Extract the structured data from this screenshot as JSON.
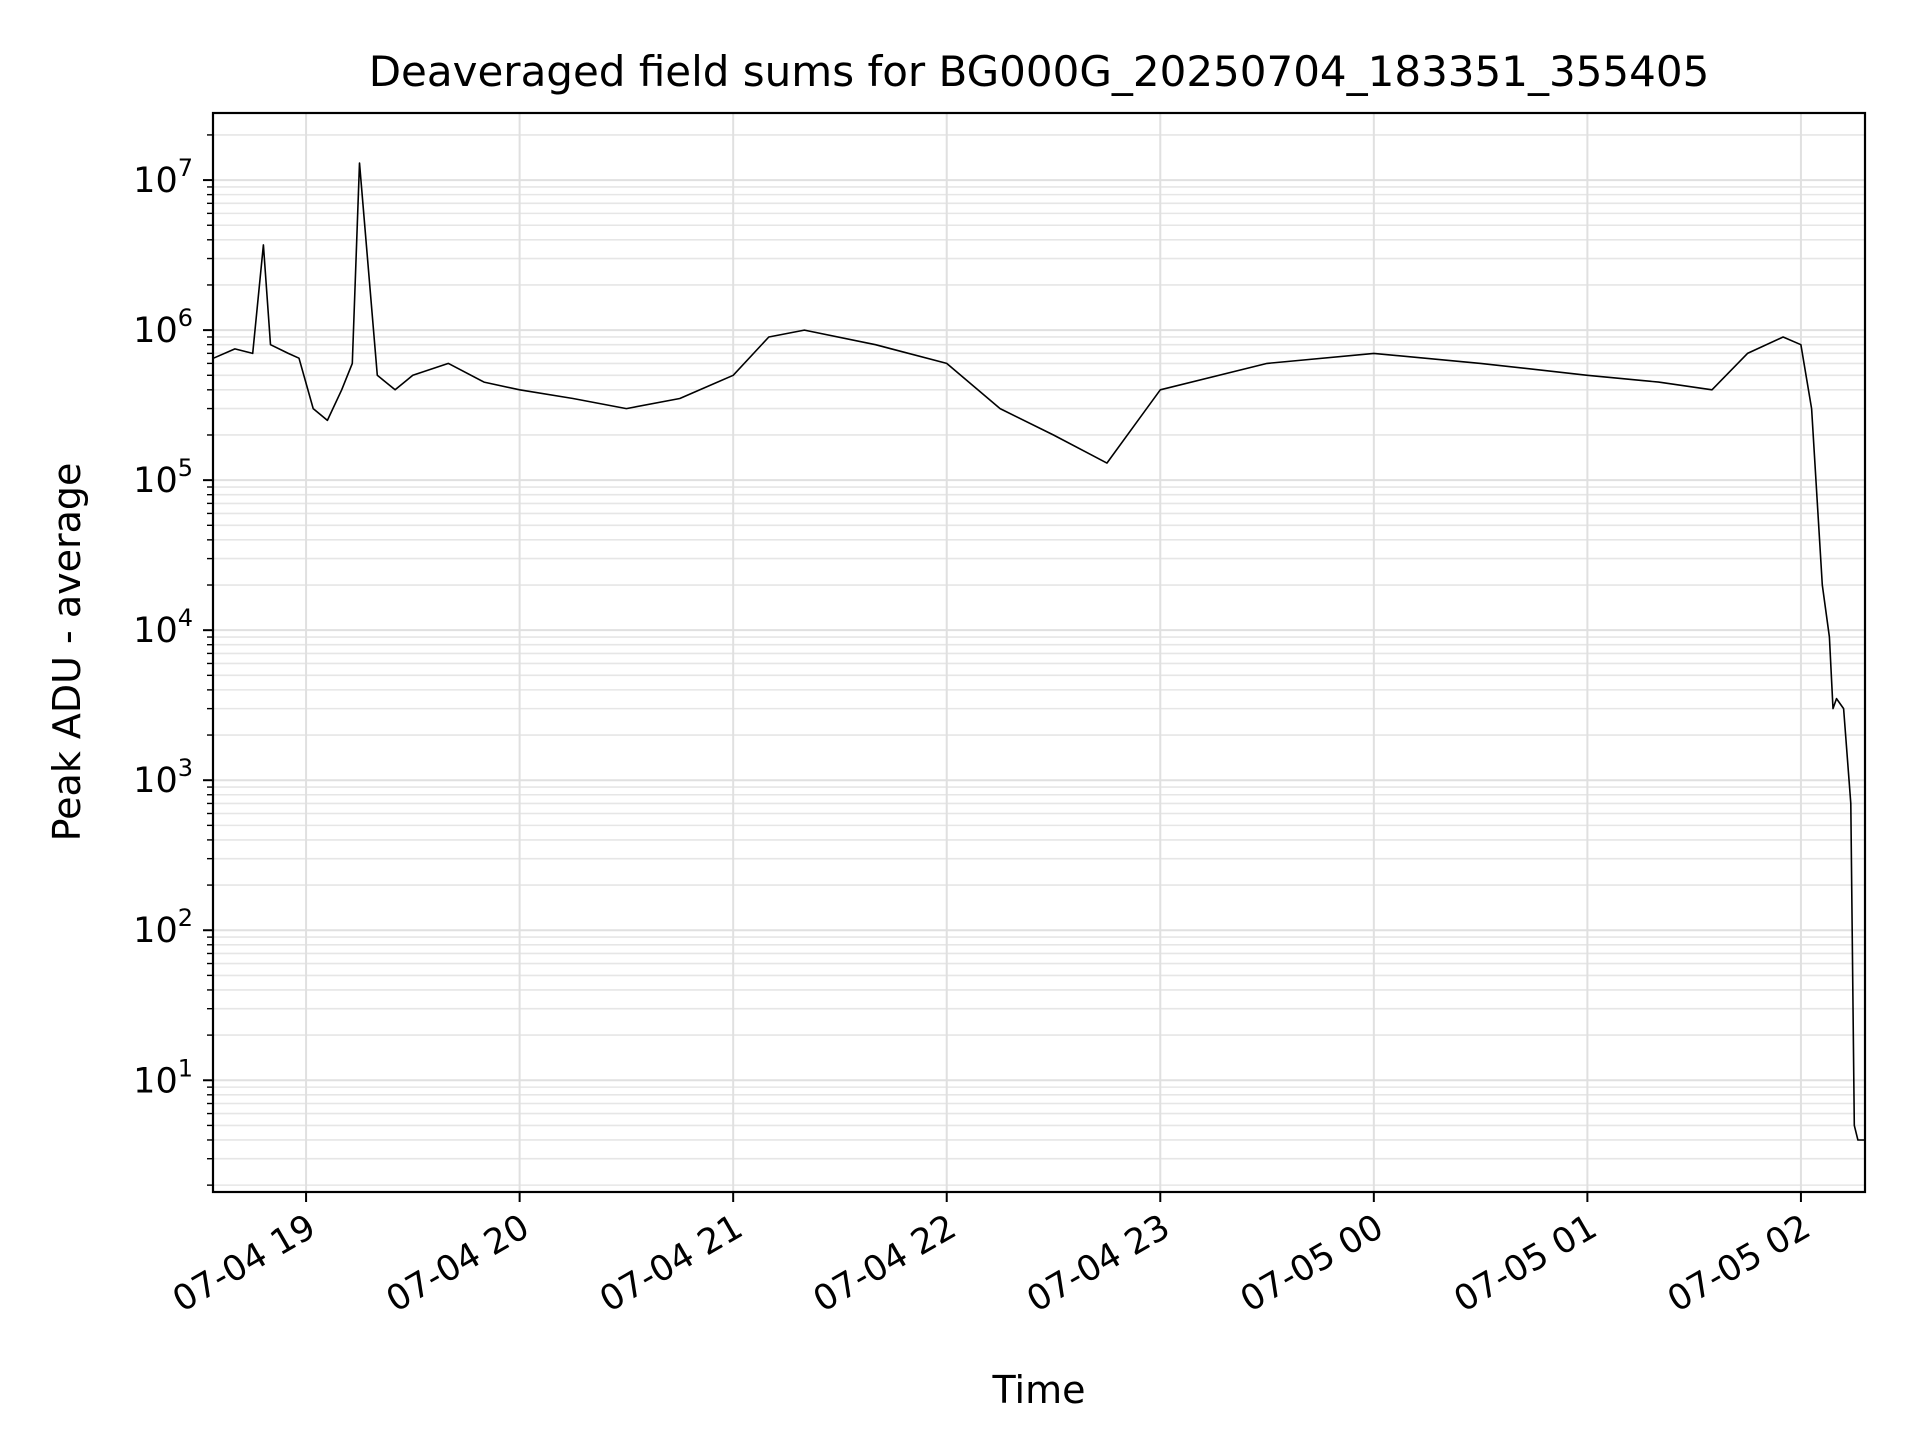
{
  "chart_data": {
    "type": "line",
    "title": "Deaveraged field sums for BG000G_20250704_183351_355405",
    "xlabel": "Time",
    "ylabel": "Peak ADU - average",
    "yscale": "log",
    "ylim": [
      1.8,
      28000000
    ],
    "xlim": [
      "2025-07-04 18:33:51",
      "2025-07-05 02:18:00"
    ],
    "grid": true,
    "y_ticks": [
      {
        "base": "10",
        "exp": "1",
        "value": 10
      },
      {
        "base": "10",
        "exp": "2",
        "value": 100
      },
      {
        "base": "10",
        "exp": "3",
        "value": 1000
      },
      {
        "base": "10",
        "exp": "4",
        "value": 10000
      },
      {
        "base": "10",
        "exp": "5",
        "value": 100000
      },
      {
        "base": "10",
        "exp": "6",
        "value": 1000000
      },
      {
        "base": "10",
        "exp": "7",
        "value": 10000000
      }
    ],
    "x_ticks": [
      {
        "label": "07-04 19",
        "time": "2025-07-04 19:00"
      },
      {
        "label": "07-04 20",
        "time": "2025-07-04 20:00"
      },
      {
        "label": "07-04 21",
        "time": "2025-07-04 21:00"
      },
      {
        "label": "07-04 22",
        "time": "2025-07-04 22:00"
      },
      {
        "label": "07-04 23",
        "time": "2025-07-04 23:00"
      },
      {
        "label": "07-05 00",
        "time": "2025-07-05 00:00"
      },
      {
        "label": "07-05 01",
        "time": "2025-07-05 01:00"
      },
      {
        "label": "07-05 02",
        "time": "2025-07-05 02:00"
      }
    ],
    "series": [
      {
        "color": "#000000",
        "x": [
          "2025-07-04 18:34",
          "2025-07-04 18:40",
          "2025-07-04 18:45",
          "2025-07-04 18:48",
          "2025-07-04 18:50",
          "2025-07-04 18:55",
          "2025-07-04 18:58",
          "2025-07-04 19:02",
          "2025-07-04 19:06",
          "2025-07-04 19:10",
          "2025-07-04 19:13",
          "2025-07-04 19:15",
          "2025-07-04 19:20",
          "2025-07-04 19:25",
          "2025-07-04 19:30",
          "2025-07-04 19:40",
          "2025-07-04 19:50",
          "2025-07-04 20:00",
          "2025-07-04 20:15",
          "2025-07-04 20:30",
          "2025-07-04 20:45",
          "2025-07-04 21:00",
          "2025-07-04 21:10",
          "2025-07-04 21:20",
          "2025-07-04 21:40",
          "2025-07-04 22:00",
          "2025-07-04 22:15",
          "2025-07-04 22:30",
          "2025-07-04 22:40",
          "2025-07-04 22:45",
          "2025-07-04 23:00",
          "2025-07-04 23:30",
          "2025-07-05 00:00",
          "2025-07-05 00:30",
          "2025-07-05 01:00",
          "2025-07-05 01:20",
          "2025-07-05 01:35",
          "2025-07-05 01:45",
          "2025-07-05 01:55",
          "2025-07-05 02:00",
          "2025-07-05 02:03",
          "2025-07-05 02:06",
          "2025-07-05 02:08",
          "2025-07-05 02:09",
          "2025-07-05 02:10",
          "2025-07-05 02:12",
          "2025-07-05 02:14",
          "2025-07-05 02:15",
          "2025-07-05 02:16",
          "2025-07-05 02:17",
          "2025-07-05 02:18"
        ],
        "y": [
          650000,
          750000,
          700000,
          3700000,
          800000,
          700000,
          650000,
          300000,
          250000,
          400000,
          600000,
          13000000,
          500000,
          400000,
          500000,
          600000,
          450000,
          400000,
          350000,
          300000,
          350000,
          500000,
          900000,
          1000000,
          800000,
          600000,
          300000,
          200000,
          150000,
          130000,
          400000,
          600000,
          700000,
          600000,
          500000,
          450000,
          400000,
          700000,
          900000,
          800000,
          300000,
          20000,
          9000,
          3000,
          3500,
          3000,
          700,
          5,
          4,
          4,
          4
        ]
      }
    ]
  }
}
